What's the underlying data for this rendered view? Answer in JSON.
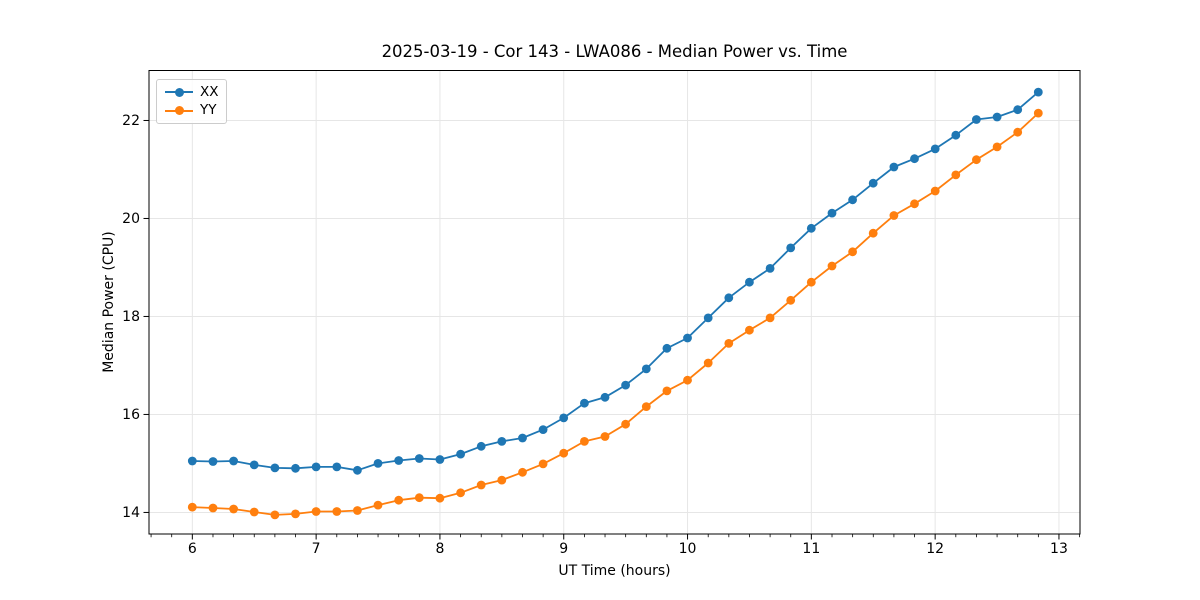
{
  "chart_data": {
    "type": "line",
    "title": "2025-03-19 - Cor 143 - LWA086 - Median Power vs. Time",
    "xlabel": "UT Time (hours)",
    "ylabel": "Median Power (CPU)",
    "xlim": [
      5.65,
      13.17
    ],
    "ylim": [
      13.56,
      23.02
    ],
    "xticks": [
      6,
      7,
      8,
      9,
      10,
      11,
      12,
      13
    ],
    "yticks": [
      14,
      16,
      18,
      20,
      22
    ],
    "x_minor_tick_step": 0.16667,
    "grid": true,
    "legend_position": "upper left",
    "colors": {
      "grid": "#e6e6e6",
      "axis": "#000000",
      "text": "#000000"
    },
    "x": [
      6,
      6.1667,
      6.3333,
      6.5,
      6.6667,
      6.8333,
      7,
      7.1667,
      7.3333,
      7.5,
      7.6667,
      7.8333,
      8,
      8.1667,
      8.3333,
      8.5,
      8.6667,
      8.8333,
      9,
      9.1667,
      9.3333,
      9.5,
      9.6667,
      9.8333,
      10,
      10.1667,
      10.3333,
      10.5,
      10.6667,
      10.8333,
      11,
      11.1667,
      11.3333,
      11.5,
      11.6667,
      11.8333,
      12,
      12.1667,
      12.3333,
      12.5,
      12.6667,
      12.8333
    ],
    "series": [
      {
        "name": "XX",
        "color": "#1f77b4",
        "values": [
          15.05,
          15.04,
          15.05,
          14.97,
          14.91,
          14.9,
          14.93,
          14.93,
          14.86,
          15.0,
          15.06,
          15.1,
          15.08,
          15.19,
          15.35,
          15.45,
          15.52,
          15.69,
          15.93,
          16.23,
          16.35,
          16.6,
          16.93,
          17.35,
          17.56,
          17.97,
          18.38,
          18.7,
          18.98,
          19.4,
          19.8,
          20.11,
          20.38,
          20.72,
          21.05,
          21.22,
          21.42,
          21.7,
          22.02,
          22.07,
          22.22,
          22.58
        ]
      },
      {
        "name": "YY",
        "color": "#ff7f0e",
        "values": [
          14.11,
          14.09,
          14.07,
          14.01,
          13.95,
          13.97,
          14.02,
          14.02,
          14.04,
          14.15,
          14.25,
          14.3,
          14.29,
          14.4,
          14.56,
          14.66,
          14.82,
          14.99,
          15.21,
          15.45,
          15.55,
          15.8,
          16.16,
          16.48,
          16.7,
          17.05,
          17.45,
          17.72,
          17.97,
          18.33,
          18.7,
          19.03,
          19.32,
          19.7,
          20.06,
          20.3,
          20.56,
          20.89,
          21.2,
          21.46,
          21.76,
          22.15
        ]
      }
    ]
  }
}
